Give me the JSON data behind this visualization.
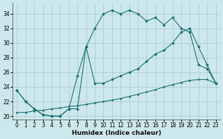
{
  "xlabel": "Humidex (Indice chaleur)",
  "bg_color": "#cce8ec",
  "grid_color": "#aacdd4",
  "line_color": "#1a7070",
  "xlim": [
    -0.5,
    23.5
  ],
  "ylim": [
    19.5,
    35.5
  ],
  "xticks": [
    0,
    1,
    2,
    3,
    4,
    5,
    6,
    7,
    8,
    9,
    10,
    11,
    12,
    13,
    14,
    15,
    16,
    17,
    18,
    19,
    20,
    21,
    22,
    23
  ],
  "yticks": [
    20,
    22,
    24,
    26,
    28,
    30,
    32,
    34
  ],
  "line1_x": [
    0,
    1,
    2,
    3,
    4,
    5,
    6,
    7,
    8,
    9,
    10,
    11,
    12,
    13,
    14,
    15,
    16,
    17,
    18,
    19,
    20,
    21,
    22,
    23
  ],
  "line1_y": [
    23.5,
    22,
    21,
    20.2,
    20,
    20,
    21,
    21,
    29.5,
    32,
    34,
    34.5,
    34,
    34.5,
    34,
    33,
    33.5,
    32.5,
    33.5,
    32,
    31.5,
    27,
    26.5,
    24.5
  ],
  "line2_x": [
    0,
    1,
    2,
    3,
    4,
    5,
    6,
    7,
    8,
    9,
    10,
    11,
    12,
    13,
    14,
    15,
    16,
    17,
    18,
    19,
    20,
    21,
    22,
    23
  ],
  "line2_y": [
    23.5,
    22,
    21,
    20.2,
    20,
    20,
    21,
    25.5,
    29.5,
    24.5,
    24.5,
    25,
    25.5,
    26,
    26.5,
    27.5,
    28.5,
    29,
    30,
    31.5,
    32,
    29.5,
    27,
    24.5
  ],
  "line3_x": [
    0,
    1,
    2,
    3,
    4,
    5,
    6,
    7,
    8,
    9,
    10,
    11,
    12,
    13,
    14,
    15,
    16,
    17,
    18,
    19,
    20,
    21,
    22,
    23
  ],
  "line3_y": [
    20.5,
    20.5,
    20.7,
    20.8,
    21.0,
    21.1,
    21.3,
    21.4,
    21.6,
    21.8,
    22.0,
    22.2,
    22.4,
    22.7,
    23.0,
    23.3,
    23.6,
    24.0,
    24.3,
    24.6,
    24.9,
    25.0,
    25.0,
    24.5
  ]
}
